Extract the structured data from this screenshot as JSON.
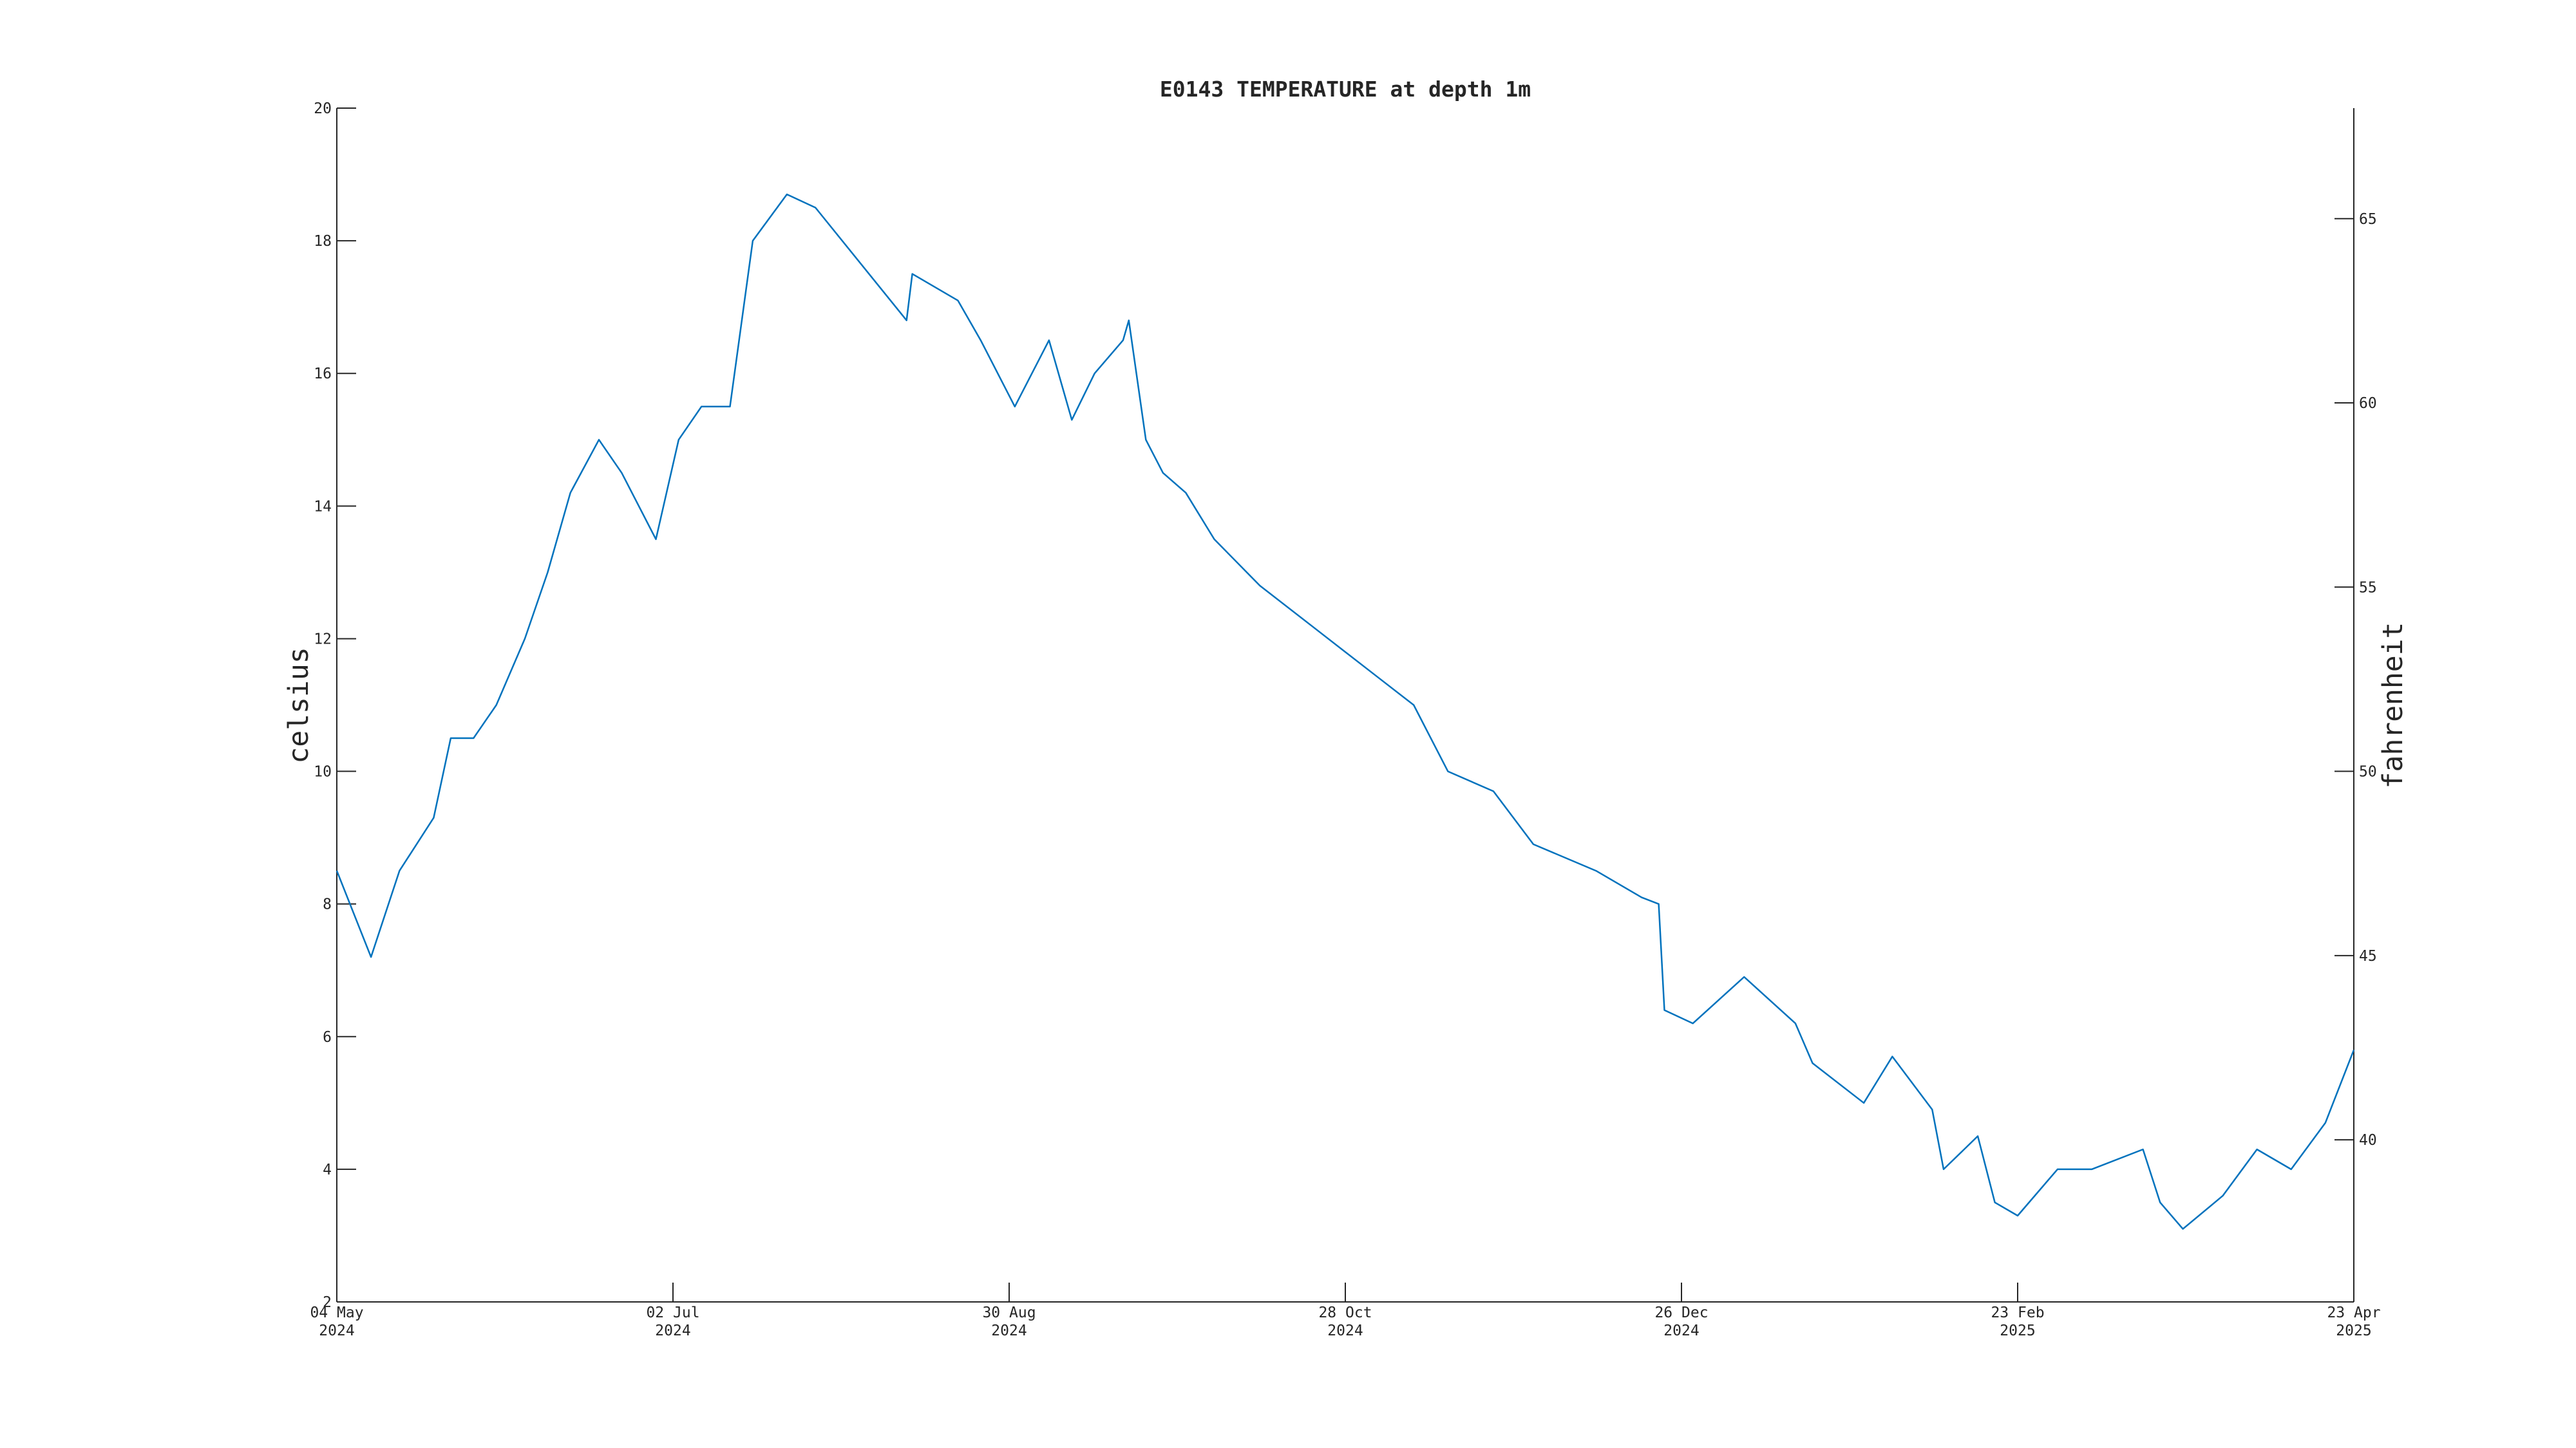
{
  "chart_data": {
    "type": "line",
    "title": "E0143 TEMPERATURE at depth 1m",
    "ylabel": "celsius",
    "y2label": "fahrenheit",
    "x": [
      "2024-05-04",
      "2024-05-10",
      "2024-05-15",
      "2024-05-21",
      "2024-05-24",
      "2024-05-28",
      "2024-06-01",
      "2024-06-06",
      "2024-06-10",
      "2024-06-14",
      "2024-06-19",
      "2024-06-23",
      "2024-06-29",
      "2024-07-03",
      "2024-07-07",
      "2024-07-12",
      "2024-07-16",
      "2024-07-22",
      "2024-07-27",
      "2024-08-12",
      "2024-08-13",
      "2024-08-21",
      "2024-08-25",
      "2024-08-31",
      "2024-09-06",
      "2024-09-10",
      "2024-09-14",
      "2024-09-19",
      "2024-09-20",
      "2024-09-23",
      "2024-09-26",
      "2024-09-30",
      "2024-10-05",
      "2024-10-13",
      "2024-10-22",
      "2024-10-28",
      "2024-11-03",
      "2024-11-09",
      "2024-11-15",
      "2024-11-23",
      "2024-11-30",
      "2024-12-11",
      "2024-12-19",
      "2024-12-22",
      "2024-12-23",
      "2024-12-28",
      "2025-01-06",
      "2025-01-15",
      "2025-01-18",
      "2025-01-27",
      "2025-02-01",
      "2025-02-08",
      "2025-02-10",
      "2025-02-16",
      "2025-02-19",
      "2025-02-23",
      "2025-03-02",
      "2025-03-08",
      "2025-03-17",
      "2025-03-20",
      "2025-03-24",
      "2025-03-31",
      "2025-04-06",
      "2025-04-12",
      "2025-04-18",
      "2025-04-23"
    ],
    "series": [
      {
        "name": "celsius",
        "color": "#0072bd",
        "values": [
          8.5,
          7.2,
          8.5,
          9.3,
          10.5,
          10.5,
          11.0,
          12.0,
          13.0,
          14.2,
          15.0,
          14.5,
          13.5,
          15.0,
          15.5,
          15.5,
          18.0,
          18.7,
          18.5,
          16.8,
          17.5,
          17.1,
          16.5,
          15.5,
          16.5,
          15.3,
          16.0,
          16.5,
          16.8,
          15.0,
          14.5,
          14.2,
          13.5,
          12.8,
          12.2,
          11.8,
          11.4,
          11.0,
          10.0,
          9.7,
          8.9,
          8.5,
          8.1,
          8.0,
          6.4,
          6.2,
          6.9,
          6.2,
          5.6,
          5.0,
          5.7,
          4.9,
          4.0,
          4.5,
          3.5,
          3.3,
          4.0,
          4.0,
          4.3,
          3.5,
          3.1,
          3.6,
          4.3,
          4.0,
          4.7,
          5.8
        ]
      }
    ],
    "xlim": [
      "2024-05-04",
      "2025-04-23"
    ],
    "xticks": [
      {
        "value": "2024-05-04",
        "label": "04 May 2024"
      },
      {
        "value": "2024-07-02",
        "label": "02 Jul 2024"
      },
      {
        "value": "2024-08-30",
        "label": "30 Aug 2024"
      },
      {
        "value": "2024-10-28",
        "label": "28 Oct 2024"
      },
      {
        "value": "2024-12-26",
        "label": "26 Dec 2024"
      },
      {
        "value": "2025-02-23",
        "label": "23 Feb 2025"
      },
      {
        "value": "2025-04-23",
        "label": "23 Apr 2025"
      }
    ],
    "ylim": [
      2,
      20
    ],
    "yticks": [
      2,
      4,
      6,
      8,
      10,
      12,
      14,
      16,
      18,
      20
    ],
    "y2lim": [
      35.6,
      68
    ],
    "y2ticks": [
      40,
      45,
      50,
      55,
      60,
      65
    ],
    "grid": false
  }
}
